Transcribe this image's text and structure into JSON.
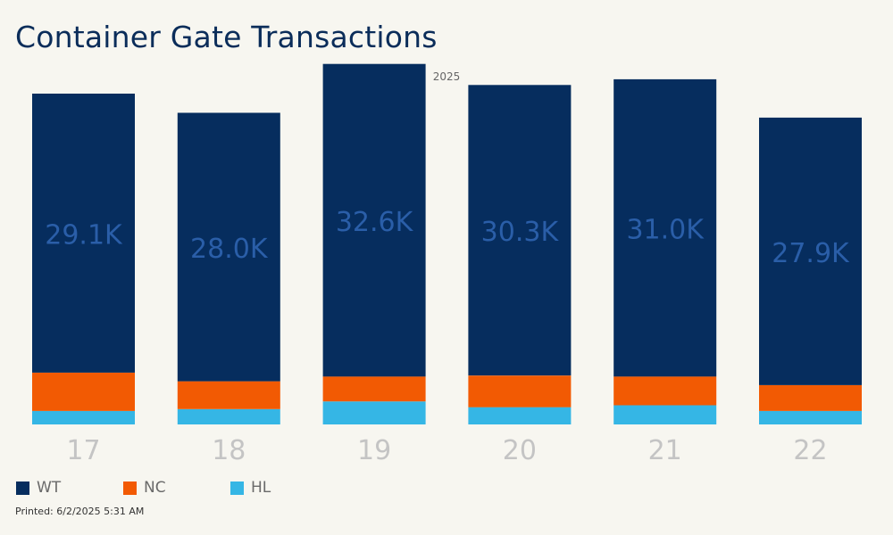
{
  "header": {
    "title": "Container Gate Transactions",
    "column_header": "2025"
  },
  "footer": {
    "printed": "Printed: 6/2/2025 5:31 AM"
  },
  "colors": {
    "WT": "#062d5e",
    "NC": "#f25a03",
    "HL": "#35b6e5",
    "total_label": "#2a5ea8",
    "axis_label": "#c4c4c4"
  },
  "chart_data": {
    "type": "bar",
    "stacked": true,
    "categories": [
      "17",
      "18",
      "19",
      "20",
      "21",
      "22"
    ],
    "series": [
      {
        "name": "HL",
        "values": [
          1.4,
          1.6,
          2.4,
          1.8,
          2.0,
          1.4
        ]
      },
      {
        "name": "NC",
        "values": [
          4.0,
          2.9,
          2.6,
          3.3,
          3.0,
          2.7
        ]
      },
      {
        "name": "WT",
        "values": [
          29.1,
          28.0,
          32.6,
          30.3,
          31.0,
          27.9
        ]
      }
    ],
    "labels": [
      "29.1K",
      "28.0K",
      "32.6K",
      "30.3K",
      "31.0K",
      "27.9K"
    ],
    "label_series": "WT",
    "ylim": [
      0,
      38.5
    ],
    "legend": [
      "WT",
      "NC",
      "HL"
    ],
    "legend_position": "bottom-left",
    "grid": false
  }
}
